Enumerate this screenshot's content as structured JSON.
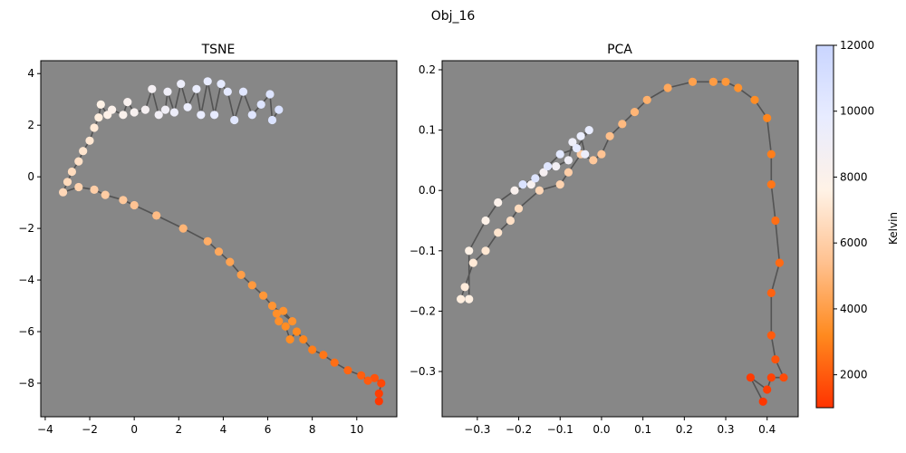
{
  "figure": {
    "title": "Obj_16"
  },
  "colorbar": {
    "label": "Kelvin",
    "range": [
      1000,
      12000
    ],
    "ticks": [
      "2000",
      "4000",
      "6000",
      "8000",
      "10000",
      "12000"
    ],
    "tick_values": [
      2000,
      4000,
      6000,
      8000,
      10000,
      12000
    ],
    "colormap": "temperature (red-orange → white → light blue)"
  },
  "colors": {
    "axes_background": "#878787",
    "line": "#4a4a4a",
    "temp_stops": [
      "#ff3300",
      "#ff8a1f",
      "#ffc18f",
      "#fff2e6",
      "#e8ecff",
      "#c9d5ff"
    ]
  },
  "chart_data": [
    {
      "type": "scatter",
      "title": "TSNE",
      "xlabel": "",
      "ylabel": "",
      "xlim": [
        -4.2,
        11.8
      ],
      "ylim": [
        -9.3,
        4.5
      ],
      "xticks": [
        -4,
        -2,
        0,
        2,
        4,
        6,
        8,
        10
      ],
      "xtick_labels": [
        "−4",
        "−2",
        "0",
        "2",
        "4",
        "6",
        "8",
        "10"
      ],
      "yticks": [
        -8,
        -6,
        -4,
        -2,
        0,
        2,
        4
      ],
      "ytick_labels": [
        "−8",
        "−6",
        "−4",
        "−2",
        "0",
        "2",
        "4"
      ],
      "grid": false,
      "connected": true,
      "points": [
        [
          11.0,
          -8.7,
          1100
        ],
        [
          11.0,
          -8.4,
          1300
        ],
        [
          11.1,
          -8.0,
          1500
        ],
        [
          10.8,
          -7.8,
          1800
        ],
        [
          10.5,
          -7.9,
          2000
        ],
        [
          10.2,
          -7.7,
          2100
        ],
        [
          9.6,
          -7.5,
          2300
        ],
        [
          9.0,
          -7.2,
          2500
        ],
        [
          8.5,
          -6.9,
          2700
        ],
        [
          8.0,
          -6.7,
          2900
        ],
        [
          7.6,
          -6.3,
          3100
        ],
        [
          7.3,
          -6.0,
          3200
        ],
        [
          7.0,
          -6.3,
          3300
        ],
        [
          6.8,
          -5.8,
          3300
        ],
        [
          6.5,
          -5.6,
          3400
        ],
        [
          6.4,
          -5.3,
          3400
        ],
        [
          6.7,
          -5.2,
          3500
        ],
        [
          7.1,
          -5.6,
          3500
        ],
        [
          6.2,
          -5.0,
          3600
        ],
        [
          5.8,
          -4.6,
          3700
        ],
        [
          5.3,
          -4.2,
          3800
        ],
        [
          4.8,
          -3.8,
          4000
        ],
        [
          4.3,
          -3.3,
          4200
        ],
        [
          3.8,
          -2.9,
          4400
        ],
        [
          3.3,
          -2.5,
          4600
        ],
        [
          2.2,
          -2.0,
          4900
        ],
        [
          1.0,
          -1.5,
          5200
        ],
        [
          0.0,
          -1.1,
          5500
        ],
        [
          -0.5,
          -0.9,
          5700
        ],
        [
          -1.3,
          -0.7,
          5900
        ],
        [
          -1.8,
          -0.5,
          6000
        ],
        [
          -2.5,
          -0.4,
          6200
        ],
        [
          -3.2,
          -0.6,
          6400
        ],
        [
          -3.0,
          -0.2,
          6500
        ],
        [
          -2.8,
          0.2,
          6600
        ],
        [
          -2.5,
          0.6,
          6800
        ],
        [
          -2.3,
          1.0,
          7000
        ],
        [
          -2.0,
          1.4,
          7100
        ],
        [
          -1.8,
          1.9,
          7200
        ],
        [
          -1.6,
          2.3,
          7400
        ],
        [
          -1.5,
          2.8,
          7600
        ],
        [
          -1.2,
          2.4,
          7800
        ],
        [
          -1.0,
          2.6,
          8000
        ],
        [
          -0.5,
          2.4,
          8100
        ],
        [
          -0.3,
          2.9,
          8300
        ],
        [
          0.0,
          2.5,
          8400
        ],
        [
          0.5,
          2.6,
          8600
        ],
        [
          0.8,
          3.4,
          8700
        ],
        [
          1.1,
          2.4,
          8900
        ],
        [
          1.4,
          2.6,
          9000
        ],
        [
          1.5,
          3.3,
          9100
        ],
        [
          1.8,
          2.5,
          9300
        ],
        [
          2.1,
          3.6,
          9400
        ],
        [
          2.4,
          2.7,
          9500
        ],
        [
          2.8,
          3.4,
          9600
        ],
        [
          3.0,
          2.4,
          9700
        ],
        [
          3.3,
          3.7,
          9800
        ],
        [
          3.6,
          2.4,
          9900
        ],
        [
          3.9,
          3.6,
          10000
        ],
        [
          4.2,
          3.3,
          10100
        ],
        [
          4.5,
          2.2,
          10200
        ],
        [
          4.9,
          3.3,
          10300
        ],
        [
          5.3,
          2.4,
          10400
        ],
        [
          5.7,
          2.8,
          10500
        ],
        [
          6.1,
          3.2,
          10600
        ],
        [
          6.2,
          2.2,
          10700
        ],
        [
          6.5,
          2.6,
          10800
        ]
      ]
    },
    {
      "type": "scatter",
      "title": "PCA",
      "xlabel": "",
      "ylabel": "",
      "xlim": [
        -0.385,
        0.475
      ],
      "ylim": [
        -0.375,
        0.215
      ],
      "xticks": [
        -0.3,
        -0.2,
        -0.1,
        0.0,
        0.1,
        0.2,
        0.3,
        0.4
      ],
      "xtick_labels": [
        "−0.3",
        "−0.2",
        "−0.1",
        "0.0",
        "0.1",
        "0.2",
        "0.3",
        "0.4"
      ],
      "yticks": [
        -0.3,
        -0.2,
        -0.1,
        0.0,
        0.1,
        0.2
      ],
      "ytick_labels": [
        "−0.3",
        "−0.2",
        "−0.1",
        "0.0",
        "0.1",
        "0.2"
      ],
      "grid": false,
      "connected": true,
      "points": [
        [
          0.39,
          -0.35,
          1100
        ],
        [
          0.36,
          -0.31,
          1200
        ],
        [
          0.4,
          -0.33,
          1300
        ],
        [
          0.41,
          -0.31,
          1400
        ],
        [
          0.44,
          -0.31,
          1600
        ],
        [
          0.42,
          -0.28,
          1800
        ],
        [
          0.41,
          -0.24,
          2000
        ],
        [
          0.41,
          -0.17,
          2200
        ],
        [
          0.43,
          -0.12,
          2400
        ],
        [
          0.42,
          -0.05,
          2500
        ],
        [
          0.41,
          0.01,
          2700
        ],
        [
          0.41,
          0.06,
          2900
        ],
        [
          0.4,
          0.12,
          3100
        ],
        [
          0.37,
          0.15,
          3300
        ],
        [
          0.33,
          0.17,
          3500
        ],
        [
          0.3,
          0.18,
          3700
        ],
        [
          0.27,
          0.18,
          3900
        ],
        [
          0.22,
          0.18,
          4100
        ],
        [
          0.16,
          0.17,
          4400
        ],
        [
          0.11,
          0.15,
          4700
        ],
        [
          0.08,
          0.13,
          4900
        ],
        [
          0.05,
          0.11,
          5100
        ],
        [
          0.02,
          0.09,
          5300
        ],
        [
          0.0,
          0.06,
          5500
        ],
        [
          -0.02,
          0.05,
          5700
        ],
        [
          -0.05,
          0.06,
          5900
        ],
        [
          -0.08,
          0.03,
          6000
        ],
        [
          -0.1,
          0.01,
          6200
        ],
        [
          -0.15,
          0.0,
          6400
        ],
        [
          -0.2,
          -0.03,
          6600
        ],
        [
          -0.22,
          -0.05,
          6800
        ],
        [
          -0.25,
          -0.07,
          7000
        ],
        [
          -0.28,
          -0.1,
          7100
        ],
        [
          -0.31,
          -0.12,
          7200
        ],
        [
          -0.33,
          -0.16,
          7300
        ],
        [
          -0.34,
          -0.18,
          7400
        ],
        [
          -0.32,
          -0.18,
          7500
        ],
        [
          -0.32,
          -0.1,
          7600
        ],
        [
          -0.28,
          -0.05,
          7800
        ],
        [
          -0.25,
          -0.02,
          8000
        ],
        [
          -0.21,
          0.0,
          8200
        ],
        [
          -0.17,
          0.01,
          8400
        ],
        [
          -0.14,
          0.03,
          8600
        ],
        [
          -0.11,
          0.04,
          8800
        ],
        [
          -0.08,
          0.05,
          9000
        ],
        [
          -0.07,
          0.08,
          9200
        ],
        [
          -0.04,
          0.06,
          9400
        ],
        [
          -0.05,
          0.09,
          9600
        ],
        [
          -0.03,
          0.1,
          9800
        ],
        [
          -0.06,
          0.07,
          10000
        ],
        [
          -0.1,
          0.06,
          10200
        ],
        [
          -0.13,
          0.04,
          10400
        ],
        [
          -0.16,
          0.02,
          10600
        ],
        [
          -0.19,
          0.01,
          10800
        ]
      ]
    }
  ]
}
